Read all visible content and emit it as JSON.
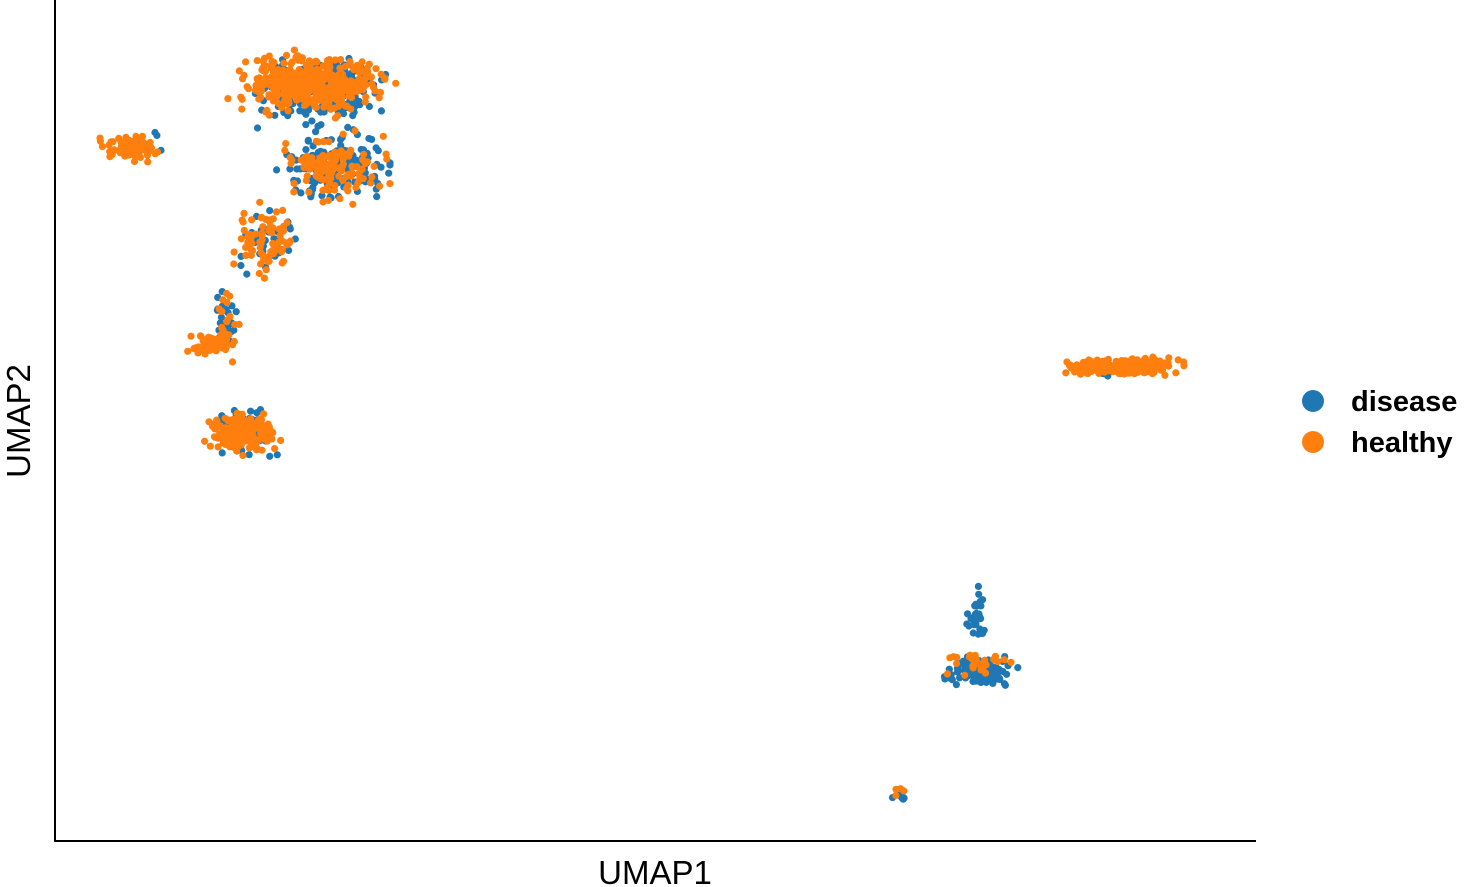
{
  "chart_data": {
    "type": "scatter",
    "title": "",
    "xlabel": "UMAP1",
    "ylabel": "UMAP2",
    "xlim": [
      0,
      100
    ],
    "ylim": [
      0,
      100
    ],
    "grid": false,
    "ticks_shown": false,
    "legend": {
      "placement": "right",
      "entries": [
        {
          "name": "disease",
          "color": "#1f77b4"
        },
        {
          "name": "healthy",
          "color": "#ff7f0e"
        }
      ]
    },
    "series": [
      {
        "name": "disease",
        "color": "#1f77b4",
        "clusters": [
          {
            "x_range": [
              15.5,
              28.5
            ],
            "y_range": [
              84.5,
              94.5
            ],
            "count": 200
          },
          {
            "x_range": [
              17,
              29
            ],
            "y_range": [
              75,
              86
            ],
            "count": 160
          },
          {
            "x_range": [
              14,
              21
            ],
            "y_range": [
              66,
              76
            ],
            "count": 40
          },
          {
            "x_range": [
              12.5,
              15.5
            ],
            "y_range": [
              55,
              68
            ],
            "count": 30
          },
          {
            "x_range": [
              13,
              18.5
            ],
            "y_range": [
              43,
              53
            ],
            "count": 25
          },
          {
            "x_range": [
              12.5,
              18.5
            ],
            "y_range": [
              47,
              52
            ],
            "count": 30
          },
          {
            "x_range": [
              73.5,
              81
            ],
            "y_range": [
              17.5,
              22
            ],
            "count": 120
          },
          {
            "x_range": [
              75.5,
              78.5
            ],
            "y_range": [
              22,
              30.5
            ],
            "count": 30
          },
          {
            "x_range": [
              69.5,
              71.5
            ],
            "y_range": [
              4,
              5.2
            ],
            "count": 8
          },
          {
            "x_range": [
              85,
              93
            ],
            "y_range": [
              54,
              58.5
            ],
            "count": 18
          },
          {
            "x_range": [
              5,
              11
            ],
            "y_range": [
              81,
              86
            ],
            "count": 4
          }
        ]
      },
      {
        "name": "healthy",
        "color": "#ff7f0e",
        "clusters": [
          {
            "x_range": [
              13,
              29
            ],
            "y_range": [
              86,
              95
            ],
            "count": 420
          },
          {
            "x_range": [
              17,
              29
            ],
            "y_range": [
              75,
              86
            ],
            "count": 130
          },
          {
            "x_range": [
              13.5,
              21
            ],
            "y_range": [
              66,
              77
            ],
            "count": 80
          },
          {
            "x_range": [
              12.5,
              15.5
            ],
            "y_range": [
              55,
              68
            ],
            "count": 20
          },
          {
            "x_range": [
              10.5,
              15
            ],
            "y_range": [
              57.5,
              61
            ],
            "count": 70
          },
          {
            "x_range": [
              11.5,
              19
            ],
            "y_range": [
              45.5,
              51.5
            ],
            "count": 220
          },
          {
            "x_range": [
              3,
              9
            ],
            "y_range": [
              80.5,
              85
            ],
            "count": 90
          },
          {
            "x_range": [
              83,
              95.5
            ],
            "y_range": [
              55.2,
              57.8
            ],
            "count": 260
          },
          {
            "x_range": [
              73.5,
              81
            ],
            "y_range": [
              18.5,
              22.5
            ],
            "count": 30
          },
          {
            "x_range": [
              69.5,
              71.5
            ],
            "y_range": [
              4.2,
              6.2
            ],
            "count": 4
          }
        ]
      }
    ]
  }
}
